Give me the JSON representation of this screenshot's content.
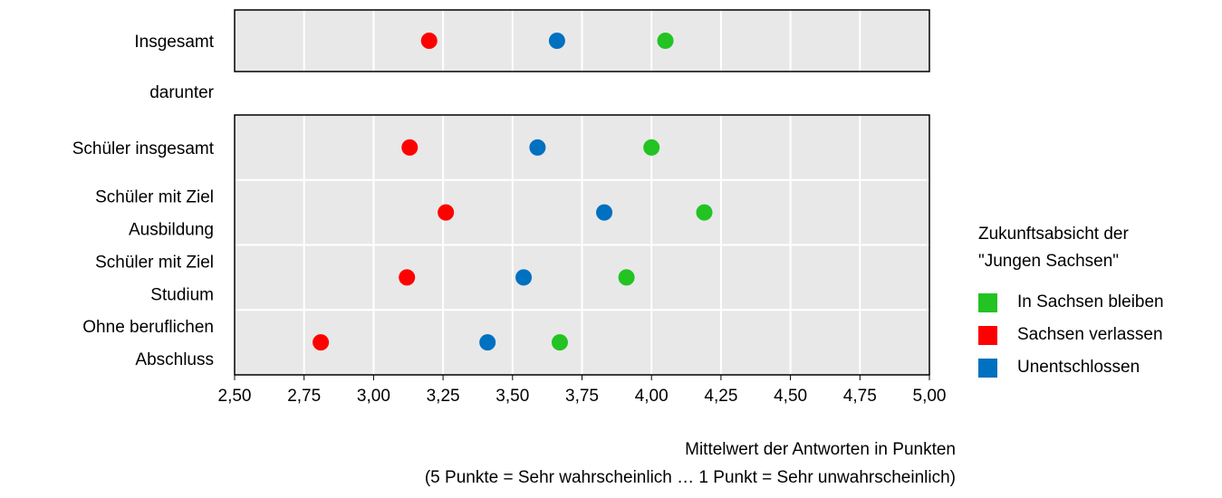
{
  "chart_data": {
    "type": "scatter",
    "xlabel": "Mittelwert der Antworten in Punkten",
    "xlabel_note": "(5 Punkte = Sehr wahrscheinlich  …  1 Punkt = Sehr unwahrscheinlich)",
    "xlim": [
      2.5,
      5.0
    ],
    "xticks": [
      2.5,
      2.75,
      3.0,
      3.25,
      3.5,
      3.75,
      4.0,
      4.25,
      4.5,
      4.75,
      5.0
    ],
    "xtick_labels": [
      "2,50",
      "2,75",
      "3,00",
      "3,25",
      "3,50",
      "3,75",
      "4,00",
      "4,25",
      "4,50",
      "4,75",
      "5,00"
    ],
    "grid": true,
    "legend_position": "right",
    "legend_title": "Zukunftsabsicht der \"Jungen Sachsen\"",
    "group_label": "darunter",
    "panels": [
      {
        "categories": [
          {
            "lines": [
              "Insgesamt"
            ]
          }
        ]
      },
      {
        "categories": [
          {
            "lines": [
              "Schüler insgesamt"
            ]
          },
          {
            "lines": [
              "Schüler mit Ziel",
              "Ausbildung"
            ]
          },
          {
            "lines": [
              "Schüler mit Ziel",
              "Studium"
            ]
          },
          {
            "lines": [
              "Ohne beruflichen",
              "Abschluss"
            ]
          }
        ]
      }
    ],
    "series": [
      {
        "name": "In Sachsen bleiben",
        "color": "#22c322",
        "values": [
          4.05,
          4.0,
          4.19,
          3.91,
          3.67
        ]
      },
      {
        "name": "Sachsen verlassen",
        "color": "#ff0000",
        "values": [
          3.2,
          3.13,
          3.26,
          3.12,
          2.81
        ]
      },
      {
        "name": "Unentschlossen",
        "color": "#0070c0",
        "values": [
          3.66,
          3.59,
          3.83,
          3.54,
          3.41
        ]
      }
    ]
  }
}
